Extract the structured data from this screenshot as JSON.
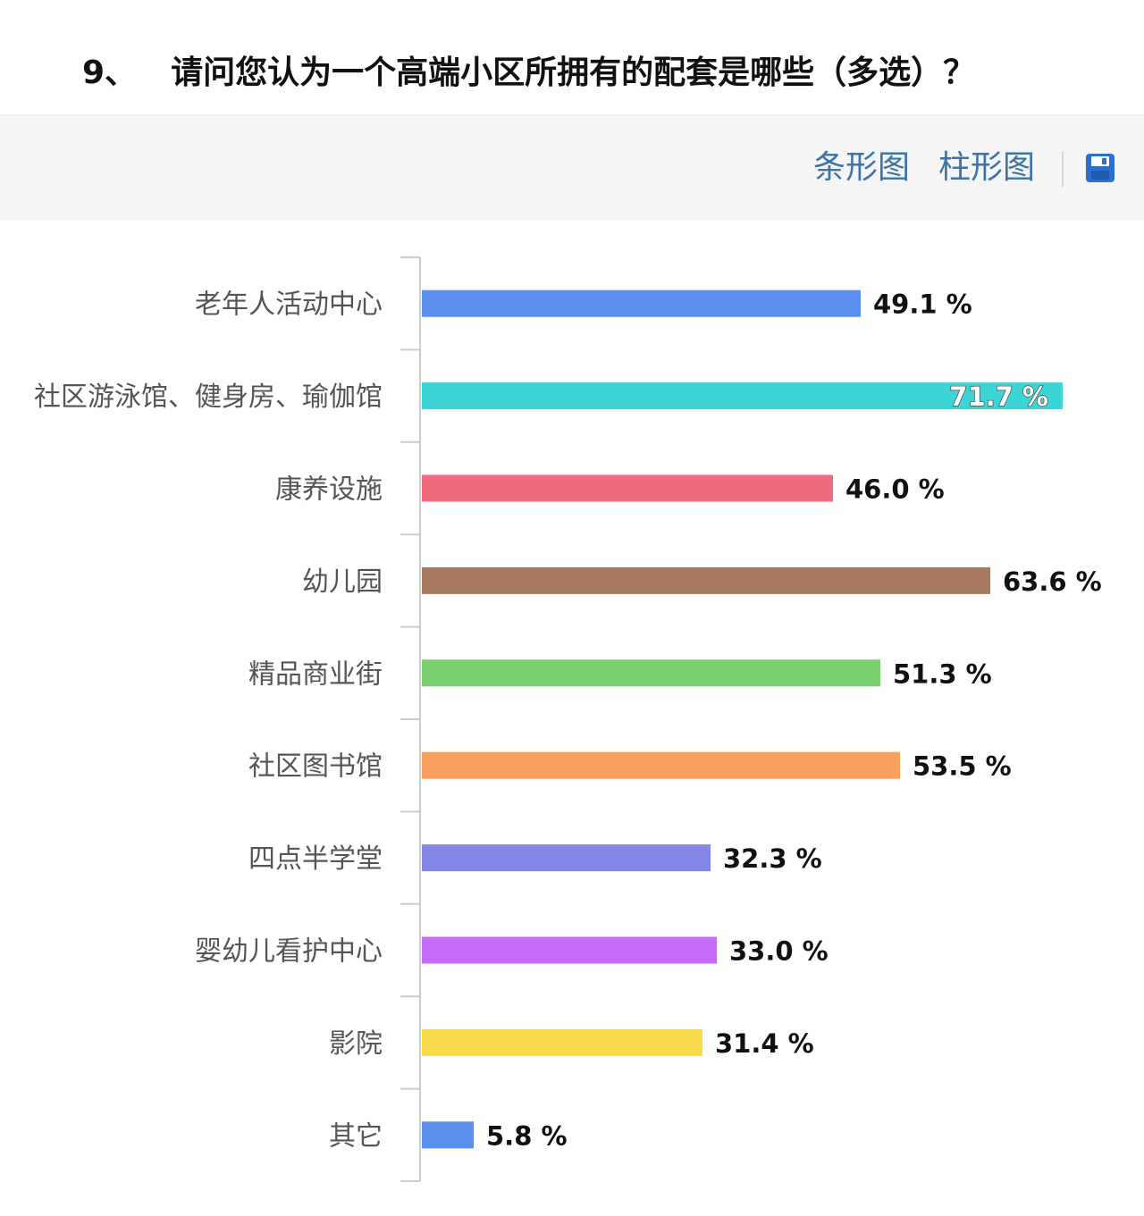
{
  "question": {
    "number": "9、",
    "text": "请问您认为一个高端小区所拥有的配套是哪些（多选）？"
  },
  "toolbar": {
    "bar_chart_label": "条形图",
    "column_chart_label": "柱形图",
    "save_icon": "save-icon"
  },
  "chart_data": {
    "type": "bar",
    "orientation": "horizontal",
    "categories": [
      "老年人活动中心",
      "社区游泳馆、健身房、瑜伽馆",
      "康养设施",
      "幼儿园",
      "精品商业街",
      "社区图书馆",
      "四点半学堂",
      "婴幼儿看护中心",
      "影院",
      "其它"
    ],
    "values": [
      49.1,
      71.7,
      46.0,
      63.6,
      51.3,
      53.5,
      32.3,
      33.0,
      31.4,
      5.8
    ],
    "value_labels": [
      "49.1 %",
      "71.7 %",
      "46.0 %",
      "63.6 %",
      "51.3 %",
      "53.5 %",
      "32.3 %",
      "33.0 %",
      "31.4 %",
      "5.8 %"
    ],
    "colors": [
      "#5b8ff0",
      "#3dd4d6",
      "#f06b7b",
      "#a87b61",
      "#7ad06e",
      "#f9a05e",
      "#8587e8",
      "#c46dfb",
      "#f9dc4c",
      "#5b8ff0"
    ],
    "unit": "%",
    "xlim": [
      0,
      100
    ],
    "grid": false
  }
}
